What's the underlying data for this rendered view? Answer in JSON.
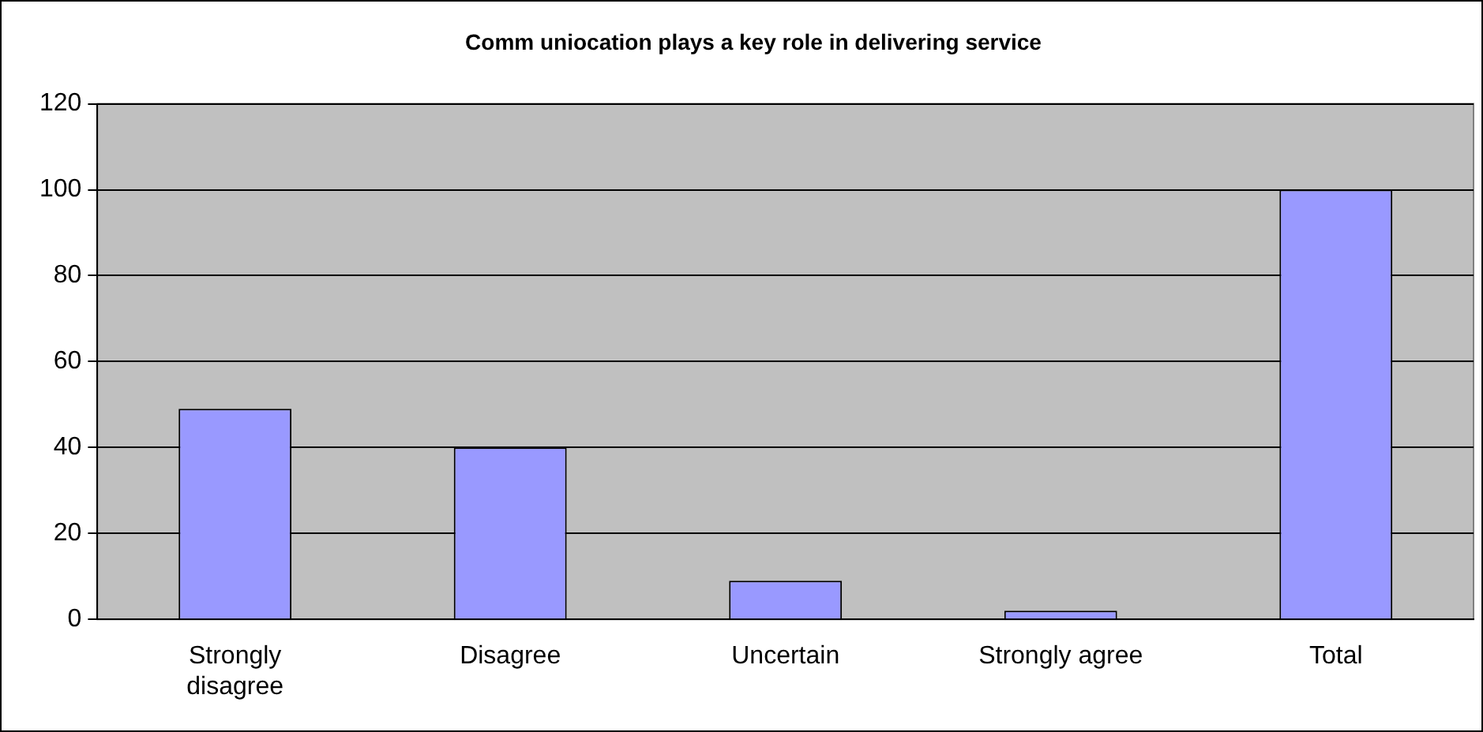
{
  "chart_data": {
    "type": "bar",
    "title": "Comm uniocation plays a key role in delivering service",
    "categories": [
      "Strongly disagree",
      "Disagree",
      "Uncertain",
      "Strongly agree",
      "Total"
    ],
    "values": [
      49,
      40,
      9,
      2,
      100
    ],
    "color": "#9999ff",
    "ylim": [
      0,
      120
    ],
    "yticks": [
      0,
      20,
      40,
      60,
      80,
      100,
      120
    ],
    "grid": "y"
  }
}
